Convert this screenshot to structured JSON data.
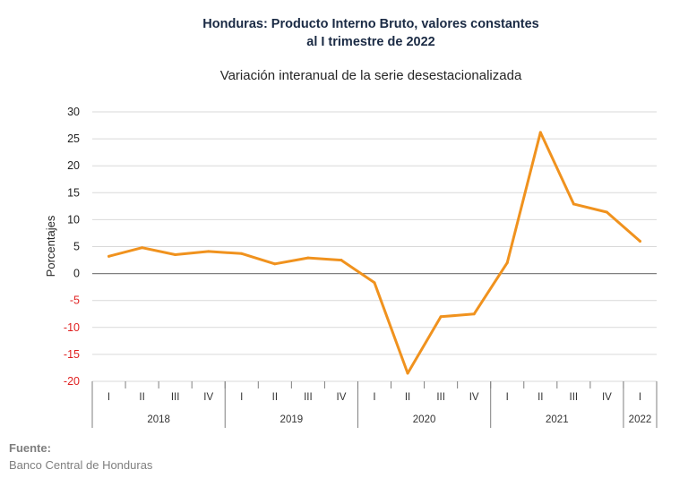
{
  "chart_data": {
    "type": "line",
    "title_line1": "Honduras: Producto Interno Bruto, valores constantes",
    "title_line2": "al I trimestre de 2022",
    "subtitle": "Variación interanual de la serie desestacionalizada",
    "ylabel": "Porcentajes",
    "ylim": [
      -20,
      30
    ],
    "yticks": [
      30,
      25,
      20,
      15,
      10,
      5,
      0,
      -5,
      -10,
      -15,
      -20
    ],
    "grid": true,
    "quarters": [
      "I",
      "II",
      "III",
      "IV",
      "I",
      "II",
      "III",
      "IV",
      "I",
      "II",
      "III",
      "IV",
      "I",
      "II",
      "III",
      "IV",
      "I"
    ],
    "years": [
      {
        "label": "2018",
        "quarters": 4
      },
      {
        "label": "2019",
        "quarters": 4
      },
      {
        "label": "2020",
        "quarters": 4
      },
      {
        "label": "2021",
        "quarters": 4
      },
      {
        "label": "2022",
        "quarters": 1
      }
    ],
    "series": [
      {
        "values": [
          3.2,
          4.8,
          3.5,
          4.1,
          3.7,
          1.8,
          2.9,
          2.5,
          -1.7,
          -18.5,
          -8.0,
          -7.5,
          2.0,
          26.2,
          12.9,
          11.4,
          6.0
        ]
      }
    ],
    "colors": {
      "line": "#f0921e",
      "negative_tick": "#e02020",
      "positive_tick": "#1f1f1f",
      "grid": "#d9d9d9",
      "zero_line": "#808080"
    }
  },
  "source": {
    "label": "Fuente:",
    "text": "Banco Central de Honduras"
  }
}
